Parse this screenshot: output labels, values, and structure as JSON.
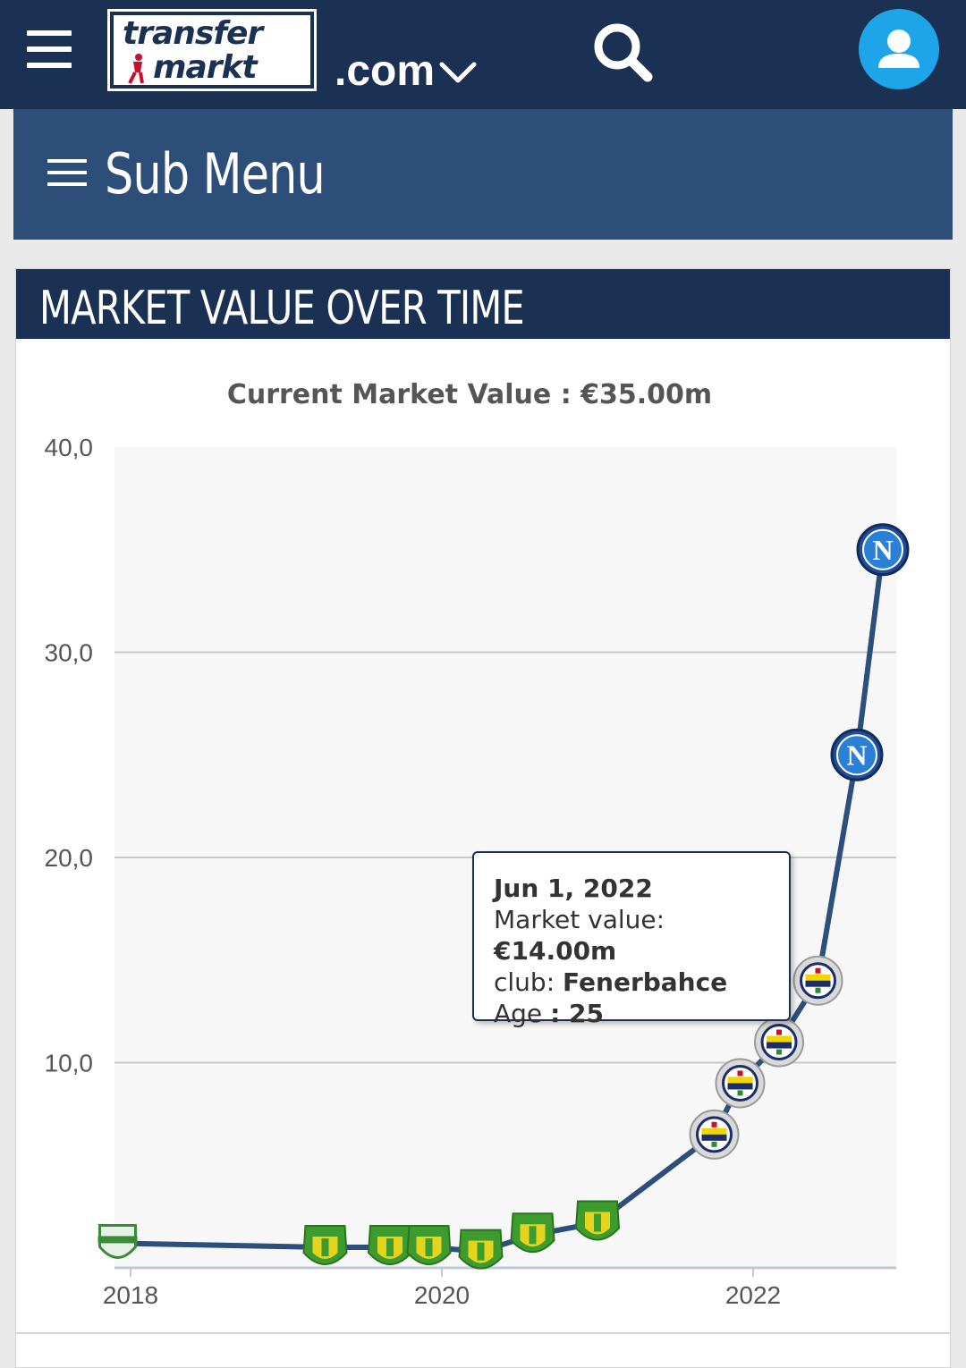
{
  "header": {
    "logo_top": "transfer",
    "logo_bottom": "markt",
    "domain": ".com"
  },
  "submenu": {
    "label": "Sub Menu"
  },
  "panel": {
    "title": "MARKET VALUE OVER TIME"
  },
  "colors": {
    "navy": "#1b3153",
    "submenu": "#2e4e7a",
    "avatar": "#1ea5e9",
    "line": "#2d4f7c"
  },
  "icons": [
    "hamburger-icon",
    "search-icon",
    "user-icon",
    "chevron-down-icon",
    "menu-icon"
  ],
  "chart_data": {
    "type": "line",
    "title": "Current Market Value : €35.00m",
    "xlabel": "",
    "ylabel": "",
    "ylim": [
      0,
      40
    ],
    "yticks": [
      "40,0",
      "30,0",
      "20,0",
      "10,0"
    ],
    "xticks": [
      "2018",
      "2020",
      "2022"
    ],
    "grid": true,
    "series": [
      {
        "points": [
          {
            "x": "2017-12",
            "y": 1.2,
            "club": "crest-green"
          },
          {
            "x": "2019-04",
            "y": 1.0,
            "club": "crest-yellow"
          },
          {
            "x": "2019-09",
            "y": 1.0,
            "club": "crest-yellow"
          },
          {
            "x": "2019-12",
            "y": 1.0,
            "club": "crest-yellow"
          },
          {
            "x": "2020-04",
            "y": 0.8,
            "club": "crest-yellow"
          },
          {
            "x": "2020-08",
            "y": 1.6,
            "club": "crest-yellow"
          },
          {
            "x": "2021-01",
            "y": 2.2,
            "club": "crest-yellow"
          },
          {
            "x": "2021-10",
            "y": 6.5,
            "club": "Fenerbahce"
          },
          {
            "x": "2021-12",
            "y": 9.0,
            "club": "Fenerbahce"
          },
          {
            "x": "2022-03",
            "y": 11.0,
            "club": "Fenerbahce"
          },
          {
            "x": "2022-06",
            "y": 14.0,
            "club": "Fenerbahce"
          },
          {
            "x": "2022-09",
            "y": 25.0,
            "club": "Napoli"
          },
          {
            "x": "2022-11",
            "y": 35.0,
            "club": "Napoli"
          }
        ]
      }
    ],
    "tooltip": {
      "date": "Jun 1, 2022",
      "value_label": "Market value: ",
      "value": "€14.00m",
      "club_label": "club: ",
      "club": "Fenerbahce",
      "age_label": "Age",
      "age": ": 25"
    }
  }
}
